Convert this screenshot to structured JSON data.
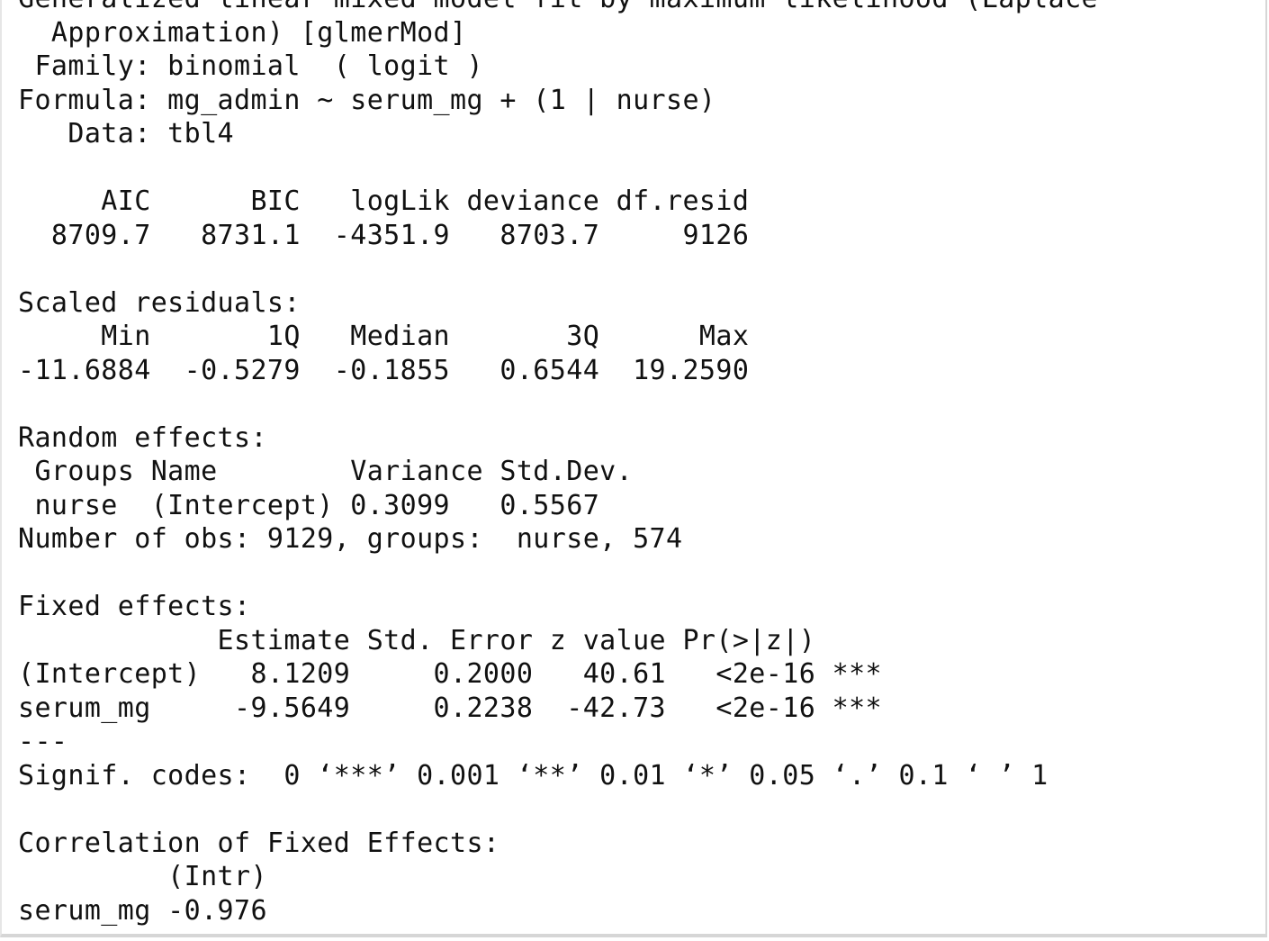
{
  "console": {
    "lines": [
      "Generalized linear mixed model fit by maximum likelihood (Laplace",
      "  Approximation) [glmerMod]",
      " Family: binomial  ( logit )",
      "Formula: mg_admin ~ serum_mg + (1 | nurse)",
      "   Data: tbl4",
      "",
      "     AIC      BIC   logLik deviance df.resid",
      "  8709.7   8731.1  -4351.9   8703.7     9126",
      "",
      "Scaled residuals:",
      "     Min       1Q   Median       3Q      Max",
      "-11.6884  -0.5279  -0.1855   0.6544  19.2590",
      "",
      "Random effects:",
      " Groups Name        Variance Std.Dev.",
      " nurse  (Intercept) 0.3099   0.5567",
      "Number of obs: 9129, groups:  nurse, 574",
      "",
      "Fixed effects:",
      "            Estimate Std. Error z value Pr(>|z|)",
      "(Intercept)   8.1209     0.2000   40.61   <2e-16 ***",
      "serum_mg     -9.5649     0.2238  -42.73   <2e-16 ***",
      "---",
      "Signif. codes:  0 ‘***’ 0.001 ‘**’ 0.01 ‘*’ 0.05 ‘.’ 0.1 ‘ ’ 1",
      "",
      "Correlation of Fixed Effects:",
      "         (Intr)",
      "serum_mg -0.976"
    ]
  }
}
